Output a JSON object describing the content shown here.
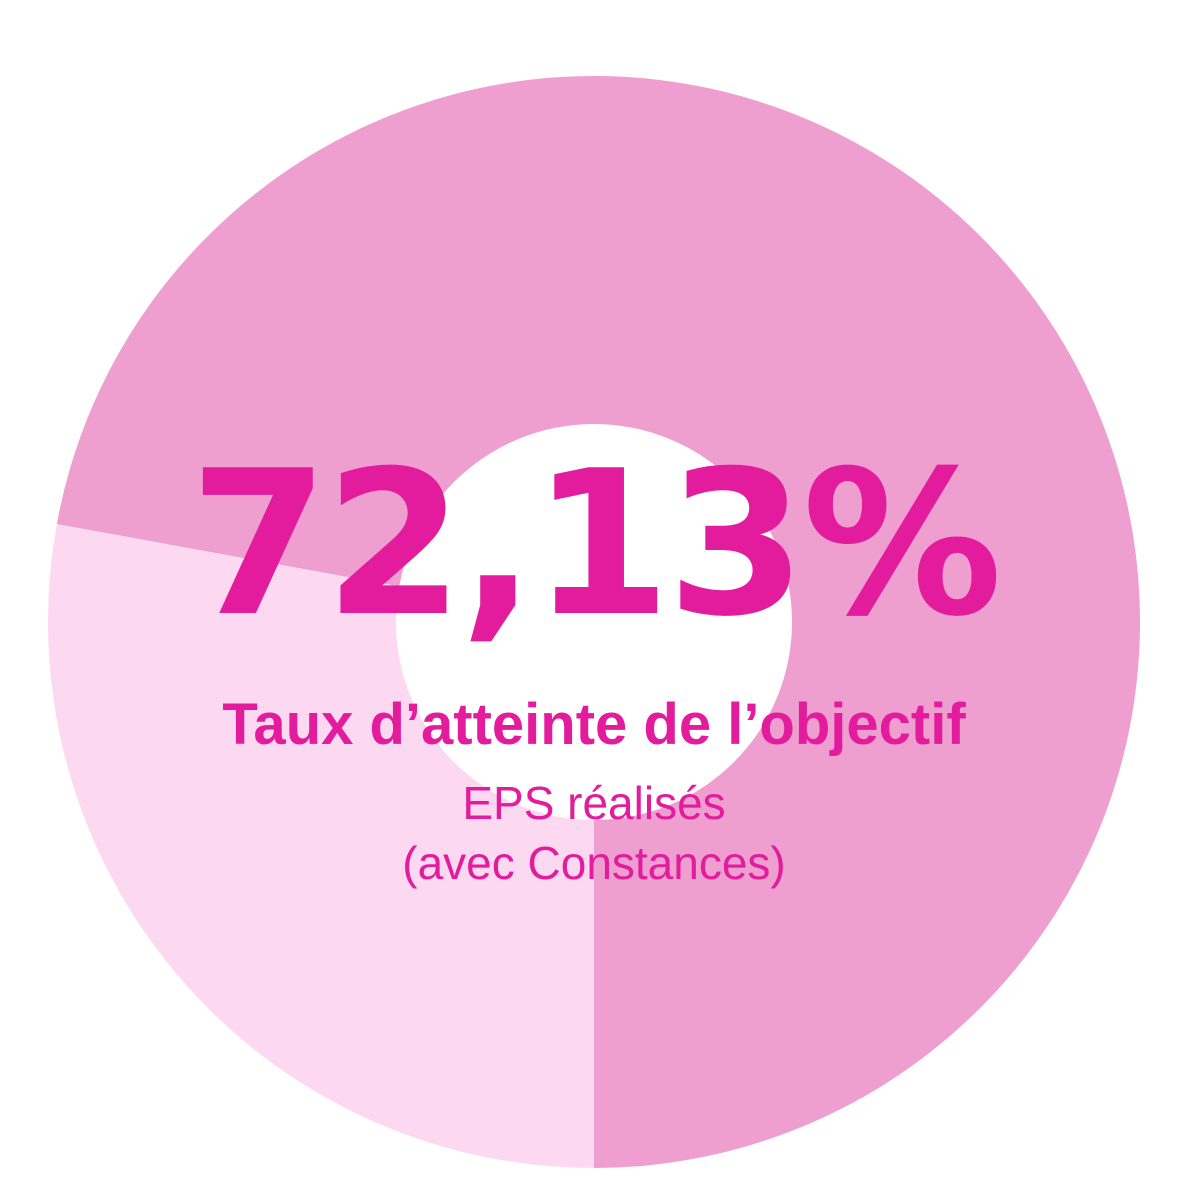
{
  "chart_data": {
    "type": "pie",
    "slices": [
      {
        "value": 72.13,
        "color": "#ee9fd0"
      },
      {
        "value": 27.87,
        "color": "#fdd9f1"
      }
    ],
    "center_value": "72,13%",
    "label_main": "Taux d’atteinte de l’objectif",
    "label_sub": "EPS réalisés",
    "label_sub2": "(avec Constances)",
    "hole_color": "#ffffff",
    "text_color": "#e21c9c"
  }
}
